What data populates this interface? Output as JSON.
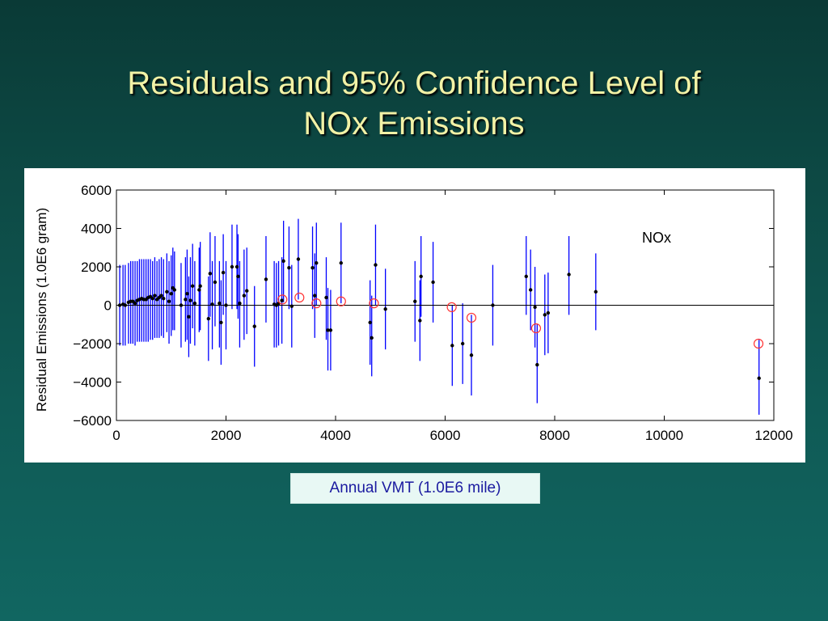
{
  "slide": {
    "title_line1": "Residuals and 95% Confidence Level of",
    "title_line2": "NOx Emissions"
  },
  "colors": {
    "title": "#f2f2a6",
    "error_bar": "#0000ff",
    "point": "#000000",
    "highlight_circle": "#ff3333",
    "xlabel_text": "#1a1aa0"
  },
  "chart_data": {
    "type": "scatter",
    "xlabel": "Annual VMT (1.0E6 mile)",
    "ylabel": "Residual Emissions (1.0E6 gram)",
    "annotation": "NOx",
    "xlim": [
      0,
      12000
    ],
    "ylim": [
      -6000,
      6000
    ],
    "xticks": [
      0,
      2000,
      4000,
      6000,
      8000,
      10000,
      12000
    ],
    "yticks": [
      -6000,
      -4000,
      -2000,
      0,
      2000,
      4000,
      6000
    ],
    "zero_line": true,
    "grid": false,
    "points": [
      {
        "x": 60,
        "y": 0,
        "lo": -2100,
        "hi": 2100
      },
      {
        "x": 120,
        "y": 50,
        "lo": -2100,
        "hi": 2100
      },
      {
        "x": 160,
        "y": 0,
        "lo": -2100,
        "hi": 2100
      },
      {
        "x": 220,
        "y": 150,
        "lo": -2000,
        "hi": 2200
      },
      {
        "x": 260,
        "y": 200,
        "lo": -2000,
        "hi": 2300
      },
      {
        "x": 300,
        "y": 200,
        "lo": -2000,
        "hi": 2300
      },
      {
        "x": 340,
        "y": 100,
        "lo": -2100,
        "hi": 2300
      },
      {
        "x": 380,
        "y": 250,
        "lo": -1900,
        "hi": 2300
      },
      {
        "x": 420,
        "y": 300,
        "lo": -1900,
        "hi": 2400
      },
      {
        "x": 460,
        "y": 350,
        "lo": -1900,
        "hi": 2400
      },
      {
        "x": 500,
        "y": 300,
        "lo": -1900,
        "hi": 2400
      },
      {
        "x": 540,
        "y": 300,
        "lo": -1900,
        "hi": 2400
      },
      {
        "x": 580,
        "y": 400,
        "lo": -1900,
        "hi": 2400
      },
      {
        "x": 620,
        "y": 450,
        "lo": -1800,
        "hi": 2400
      },
      {
        "x": 660,
        "y": 350,
        "lo": -1800,
        "hi": 2300
      },
      {
        "x": 700,
        "y": 500,
        "lo": -1700,
        "hi": 2500
      },
      {
        "x": 740,
        "y": 300,
        "lo": -1700,
        "hi": 2300
      },
      {
        "x": 780,
        "y": 400,
        "lo": -1700,
        "hi": 2400
      },
      {
        "x": 820,
        "y": 500,
        "lo": -1600,
        "hi": 2500
      },
      {
        "x": 860,
        "y": 350,
        "lo": -1700,
        "hi": 2400
      },
      {
        "x": 920,
        "y": 700,
        "lo": -1400,
        "hi": 2700
      },
      {
        "x": 960,
        "y": 200,
        "lo": -2000,
        "hi": 2300
      },
      {
        "x": 1000,
        "y": 600,
        "lo": -1600,
        "hi": 2600
      },
      {
        "x": 1030,
        "y": 900,
        "lo": -1300,
        "hi": 3000
      },
      {
        "x": 1060,
        "y": 800,
        "lo": -1300,
        "hi": 2800
      },
      {
        "x": 1180,
        "y": 0,
        "lo": -2200,
        "hi": 2200
      },
      {
        "x": 1260,
        "y": 300,
        "lo": -1900,
        "hi": 2500
      },
      {
        "x": 1290,
        "y": 600,
        "lo": -1800,
        "hi": 2900
      },
      {
        "x": 1320,
        "y": -600,
        "lo": -2700,
        "hi": 1500
      },
      {
        "x": 1350,
        "y": 250,
        "lo": -2000,
        "hi": 2500
      },
      {
        "x": 1390,
        "y": 1000,
        "lo": -1200,
        "hi": 3200
      },
      {
        "x": 1430,
        "y": 100,
        "lo": -2100,
        "hi": 2300
      },
      {
        "x": 1510,
        "y": 800,
        "lo": -1400,
        "hi": 3000
      },
      {
        "x": 1530,
        "y": 1000,
        "lo": -1300,
        "hi": 3300
      },
      {
        "x": 1680,
        "y": -700,
        "lo": -2900,
        "hi": 1500
      },
      {
        "x": 1710,
        "y": 1650,
        "lo": -600,
        "hi": 3800
      },
      {
        "x": 1750,
        "y": 50,
        "lo": -2300,
        "hi": 2300
      },
      {
        "x": 1800,
        "y": 1200,
        "lo": -1100,
        "hi": 3600
      },
      {
        "x": 1880,
        "y": 100,
        "lo": -2200,
        "hi": 2300
      },
      {
        "x": 1910,
        "y": -900,
        "lo": -3100,
        "hi": 1300
      },
      {
        "x": 1950,
        "y": 1700,
        "lo": -500,
        "hi": 3700
      },
      {
        "x": 2000,
        "y": 0,
        "lo": -2300,
        "hi": 2300
      },
      {
        "x": 2110,
        "y": 2000,
        "lo": -200,
        "hi": 4200
      },
      {
        "x": 2200,
        "y": 2000,
        "lo": -200,
        "hi": 4200
      },
      {
        "x": 2220,
        "y": 1500,
        "lo": -700,
        "hi": 3700
      },
      {
        "x": 2250,
        "y": 100,
        "lo": -2200,
        "hi": 2300
      },
      {
        "x": 2330,
        "y": 500,
        "lo": -1800,
        "hi": 2900
      },
      {
        "x": 2380,
        "y": 750,
        "lo": -1500,
        "hi": 3000
      },
      {
        "x": 2520,
        "y": -1100,
        "lo": -3200,
        "hi": 1000
      },
      {
        "x": 2730,
        "y": 1350,
        "lo": -900,
        "hi": 3600
      },
      {
        "x": 2880,
        "y": 50,
        "lo": -2200,
        "hi": 2300
      },
      {
        "x": 2920,
        "y": 0,
        "lo": -2200,
        "hi": 2200
      },
      {
        "x": 2960,
        "y": 100,
        "lo": -2100,
        "hi": 2300
      },
      {
        "x": 3020,
        "y": 250,
        "lo": -2000,
        "hi": 2500
      },
      {
        "x": 3050,
        "y": 2300,
        "lo": 150,
        "hi": 4400
      },
      {
        "x": 3150,
        "y": 1950,
        "lo": -200,
        "hi": 4100
      },
      {
        "x": 3200,
        "y": -50,
        "lo": -2200,
        "hi": 2100
      },
      {
        "x": 3320,
        "y": 2400,
        "lo": 300,
        "hi": 4500
      },
      {
        "x": 3580,
        "y": 1950,
        "lo": -200,
        "hi": 4100
      },
      {
        "x": 3620,
        "y": 500,
        "lo": -1700,
        "hi": 2700
      },
      {
        "x": 3650,
        "y": 2200,
        "lo": 0,
        "hi": 4300
      },
      {
        "x": 3830,
        "y": 400,
        "lo": -1800,
        "hi": 2500
      },
      {
        "x": 3860,
        "y": -1300,
        "lo": -3400,
        "hi": 900
      },
      {
        "x": 3910,
        "y": -1300,
        "lo": -3400,
        "hi": 800
      },
      {
        "x": 4100,
        "y": 2200,
        "lo": 100,
        "hi": 4300
      },
      {
        "x": 4630,
        "y": -900,
        "lo": -3100,
        "hi": 1300
      },
      {
        "x": 4660,
        "y": -1700,
        "lo": -3700,
        "hi": 500
      },
      {
        "x": 4730,
        "y": 2100,
        "lo": 0,
        "hi": 4200
      },
      {
        "x": 4910,
        "y": -200,
        "lo": -2300,
        "hi": 1900
      },
      {
        "x": 5450,
        "y": 200,
        "lo": -1900,
        "hi": 2300
      },
      {
        "x": 5540,
        "y": -800,
        "lo": -2900,
        "hi": 1300
      },
      {
        "x": 5560,
        "y": 1500,
        "lo": -600,
        "hi": 3600
      },
      {
        "x": 5780,
        "y": 1200,
        "lo": -900,
        "hi": 3300
      },
      {
        "x": 6130,
        "y": -2100,
        "lo": -4200,
        "hi": 0
      },
      {
        "x": 6320,
        "y": -2000,
        "lo": -4100,
        "hi": 100
      },
      {
        "x": 6480,
        "y": -2600,
        "lo": -4700,
        "hi": -500
      },
      {
        "x": 6870,
        "y": 0,
        "lo": -2100,
        "hi": 2100
      },
      {
        "x": 7480,
        "y": 1500,
        "lo": -500,
        "hi": 3600
      },
      {
        "x": 7560,
        "y": 800,
        "lo": -1300,
        "hi": 2900
      },
      {
        "x": 7640,
        "y": -100,
        "lo": -2200,
        "hi": 2000
      },
      {
        "x": 7680,
        "y": -3100,
        "lo": -5100,
        "hi": -1000
      },
      {
        "x": 7820,
        "y": -500,
        "lo": -2600,
        "hi": 1600
      },
      {
        "x": 7880,
        "y": -400,
        "lo": -2500,
        "hi": 1700
      },
      {
        "x": 8260,
        "y": 1600,
        "lo": -500,
        "hi": 3600
      },
      {
        "x": 8750,
        "y": 700,
        "lo": -1300,
        "hi": 2700
      },
      {
        "x": 11730,
        "y": -3800,
        "lo": -5700,
        "hi": -1800
      }
    ],
    "highlighted": [
      {
        "x": 3030,
        "y": 300
      },
      {
        "x": 3340,
        "y": 400
      },
      {
        "x": 3650,
        "y": 100
      },
      {
        "x": 4100,
        "y": 200
      },
      {
        "x": 4700,
        "y": 100
      },
      {
        "x": 6120,
        "y": -100
      },
      {
        "x": 6480,
        "y": -650
      },
      {
        "x": 7660,
        "y": -1200
      },
      {
        "x": 11720,
        "y": -2000
      }
    ]
  }
}
